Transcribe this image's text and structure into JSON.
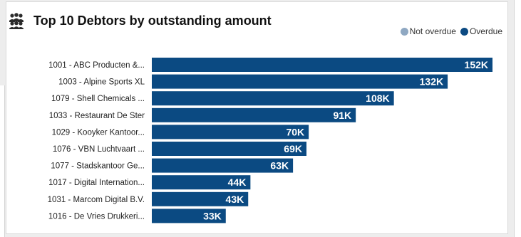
{
  "chart_data": {
    "type": "bar",
    "orientation": "horizontal",
    "title": "Top 10 Debtors by outstanding amount",
    "categories": [
      "1001 - ABC Producten &...",
      "1003 - Alpine Sports XL",
      "1079 - Shell Chemicals ...",
      "1033 - Restaurant De Ster",
      "1029 - Kooyker Kantoor...",
      "1076 - VBN Luchtvaart ...",
      "1077 - Stadskantoor Ge...",
      "1017 - Digital Internation...",
      "1031 - Marcom Digital B.V.",
      "1016 - De Vries Drukkeri..."
    ],
    "series": [
      {
        "name": "Not overdue",
        "color": "#8fa8c2",
        "values": [
          0,
          0,
          0,
          0,
          0,
          0,
          0,
          0,
          0,
          0
        ]
      },
      {
        "name": "Overdue",
        "color": "#0b4a82",
        "values": [
          152,
          132,
          108,
          91,
          70,
          69,
          63,
          44,
          43,
          33
        ]
      }
    ],
    "data_labels": [
      "152K",
      "132K",
      "108K",
      "91K",
      "70K",
      "69K",
      "63K",
      "44K",
      "43K",
      "33K"
    ],
    "value_unit": "K",
    "xlim": [
      0,
      152
    ],
    "grid": false,
    "legend_position": "top-right"
  },
  "icons": {
    "title_icon": "people-group-icon"
  }
}
